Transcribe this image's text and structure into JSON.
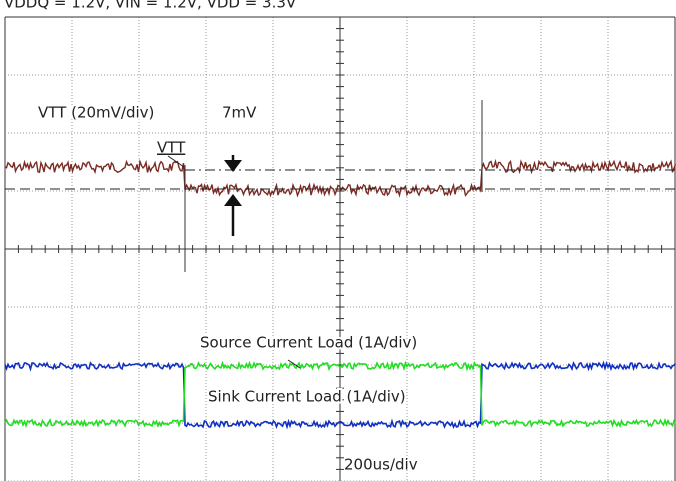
{
  "header": {
    "conditions": "VDDQ = 1.2V, VIN = 1.2V, VDD = 3.3V"
  },
  "annotations": {
    "vtt_scale": "VTT (20mV/div)",
    "delta": "7mV",
    "vtt_marker": "VTT",
    "source_load": "Source Current Load (1A/div)",
    "sink_load": "Sink Current Load (1A/div)",
    "timebase": "200us/div"
  }
}
